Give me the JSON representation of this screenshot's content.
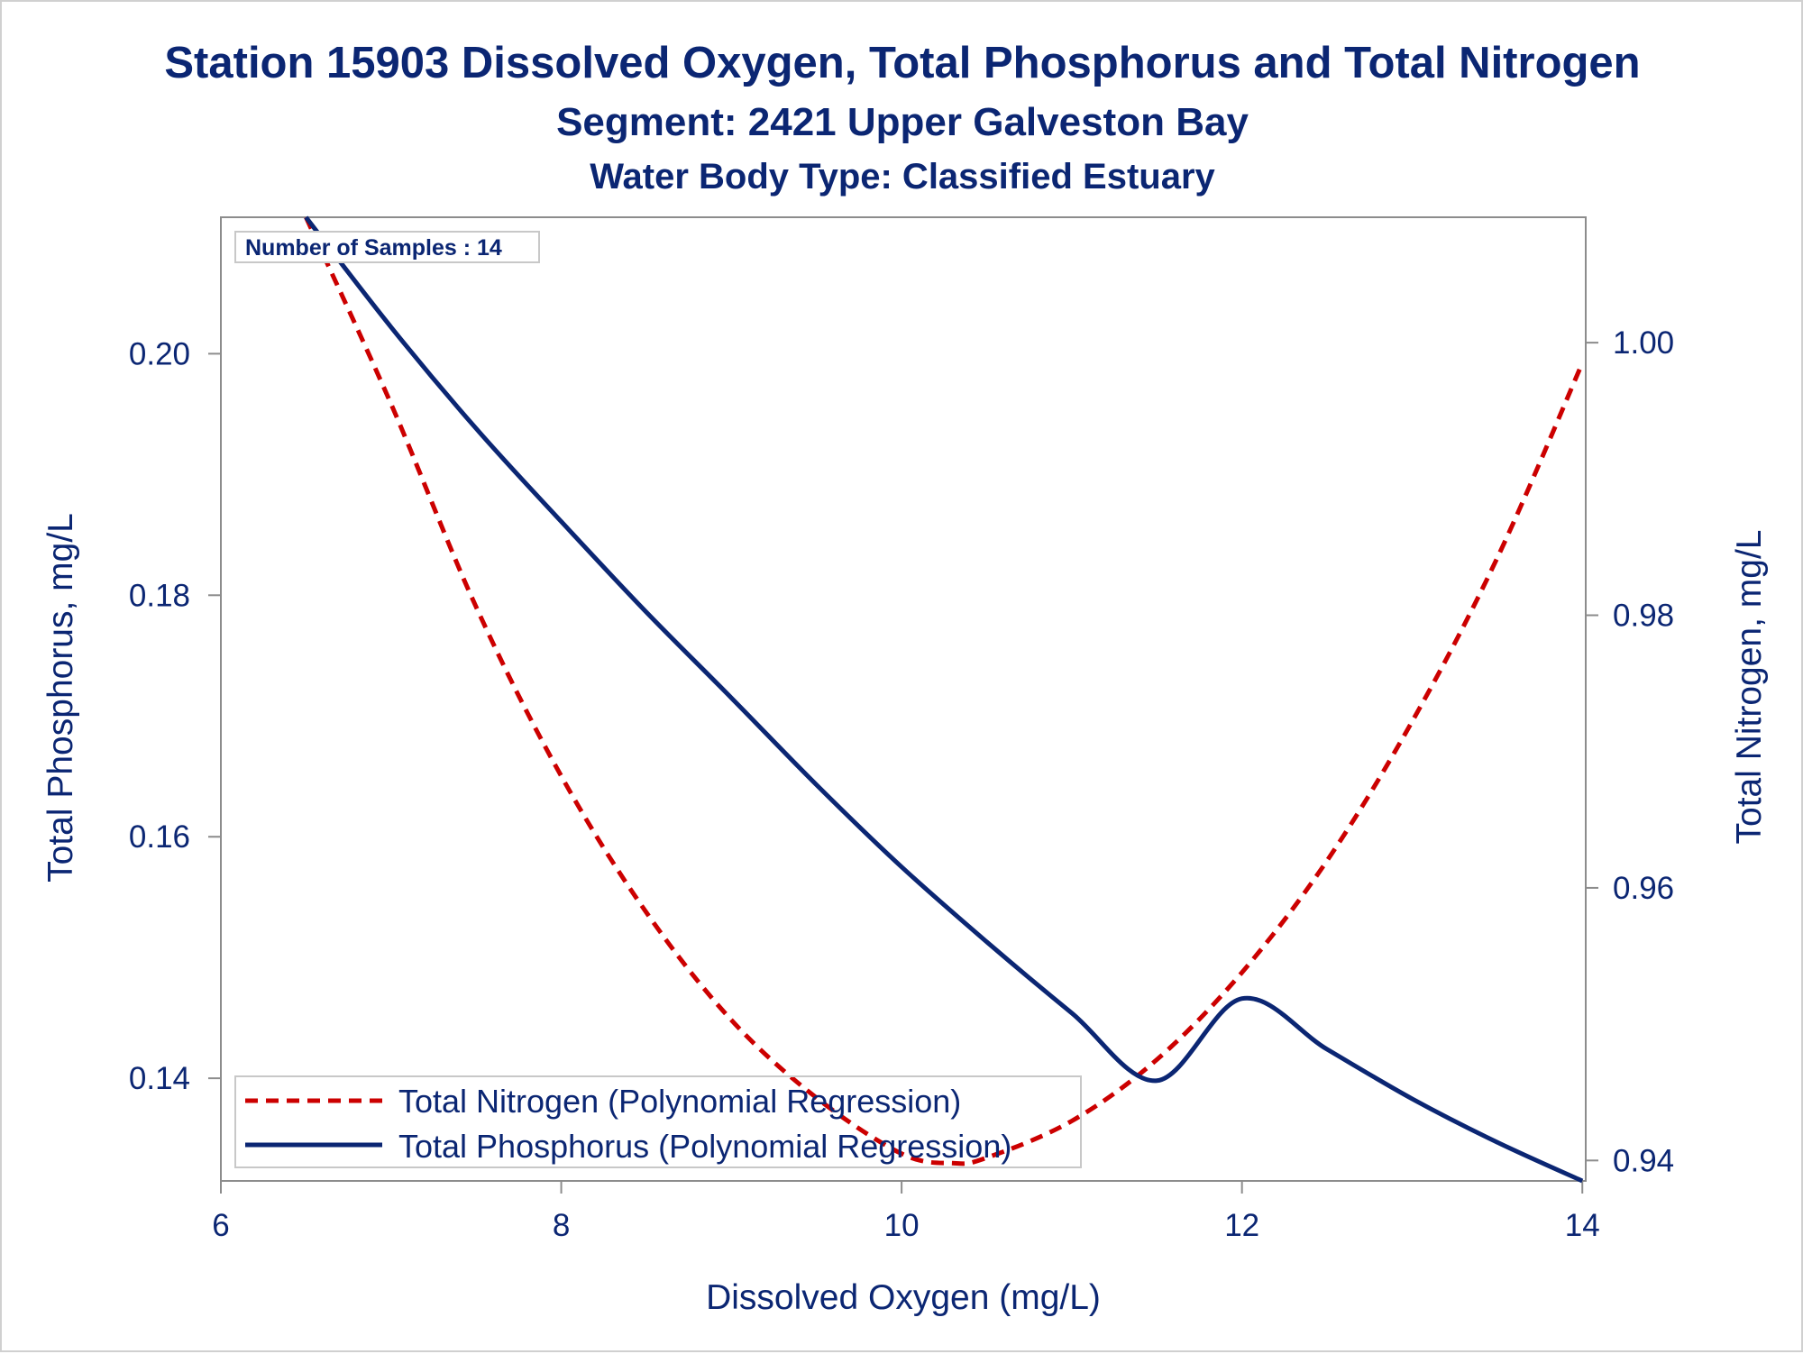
{
  "chart_data": {
    "type": "line",
    "title": "Station 15903  Dissolved Oxygen, Total Phosphorus and Total Nitrogen",
    "subtitle": "Segment: 2421  Upper Galveston Bay",
    "subtitle2": "Water Body Type: Classified Estuary",
    "xlabel": "Dissolved Oxygen (mg/L)",
    "ylabel_left": "Total Phosphorus, mg/L",
    "ylabel_right": "Total Nitrogen, mg/L",
    "xlim": [
      6,
      14.02
    ],
    "ylim_left": [
      0.1315,
      0.2113
    ],
    "ylim_right": [
      0.9385,
      1.0092
    ],
    "x_ticks": [
      "6",
      "8",
      "10",
      "12",
      "14"
    ],
    "x_tick_values": [
      6,
      8,
      10,
      12,
      14
    ],
    "y_left_ticks": [
      "0.14",
      "0.16",
      "0.18",
      "0.20"
    ],
    "y_left_tick_values": [
      0.14,
      0.16,
      0.18,
      0.2
    ],
    "y_right_ticks": [
      "0.94",
      "0.96",
      "0.98",
      "1.00"
    ],
    "y_right_tick_values": [
      0.94,
      0.96,
      0.98,
      1.0
    ],
    "inset_text": "Number of Samples : 14",
    "legend_position": "bottom-left",
    "grid": false,
    "series": [
      {
        "name": "Total Nitrogen (Polynomial Regression)",
        "axis": "right",
        "style": "dashed",
        "color": "#cc0000",
        "x": [
          6.5,
          7.0,
          7.5,
          8.0,
          8.5,
          9.0,
          9.5,
          10.0,
          10.3,
          10.5,
          11.0,
          11.5,
          12.0,
          12.5,
          13.0,
          13.5,
          14.0
        ],
        "y": [
          1.0092,
          0.9955,
          0.9806,
          0.9682,
          0.9582,
          0.9503,
          0.9446,
          0.9405,
          0.9398,
          0.9402,
          0.9429,
          0.9474,
          0.9538,
          0.962,
          0.9722,
          0.9842,
          0.9985
        ]
      },
      {
        "name": "Total Phosphorus (Polynomial Regression)",
        "axis": "left",
        "style": "solid",
        "color": "#0b2673",
        "x": [
          6.5,
          7.0,
          7.5,
          8.0,
          8.5,
          9.0,
          9.5,
          10.0,
          10.5,
          11.0,
          11.5,
          12.0,
          12.5,
          13.0,
          13.5,
          14.0
        ],
        "y": [
          0.2113,
          0.2022,
          0.1938,
          0.1861,
          0.1786,
          0.1715,
          0.1643,
          0.1575,
          0.1513,
          0.1454,
          0.1398,
          0.1466,
          0.1424,
          0.1383,
          0.1347,
          0.1315
        ]
      }
    ]
  }
}
